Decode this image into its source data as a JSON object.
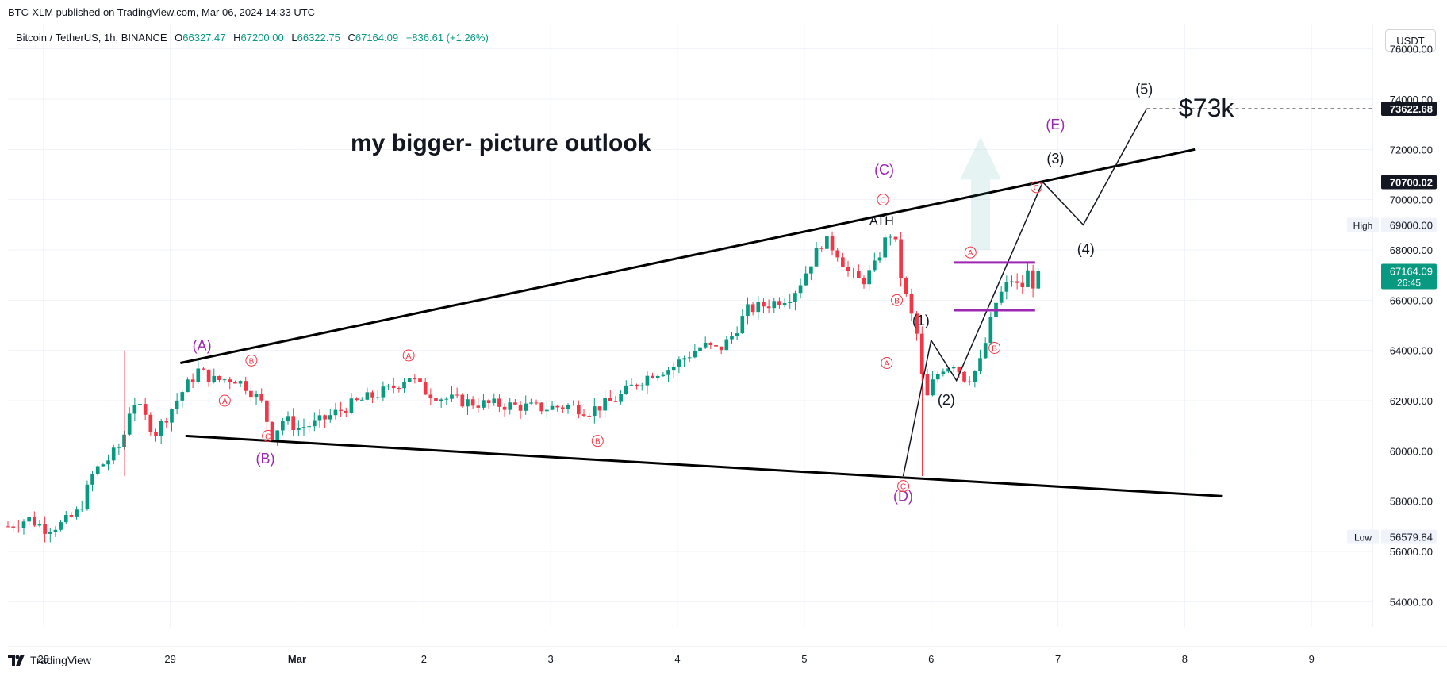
{
  "header": {
    "published": "BTC-XLM published on TradingView.com, Mar 06, 2024 14:33 UTC",
    "symbol": "Bitcoin / TetherUS, 1h, BINANCE",
    "open_label": "O",
    "open": "66327.47",
    "high_label": "H",
    "high": "67200.00",
    "low_label": "L",
    "low": "66322.75",
    "close_label": "C",
    "close": "67164.09",
    "change": "+836.61 (+1.26%)",
    "currency": "USDT"
  },
  "footer": {
    "brand": "TradingView",
    "logo_icon": "tradingview-logo-icon"
  },
  "colors": {
    "up": "#089981",
    "down": "#f23645",
    "wave": "#9c27b0",
    "annotation_red": "#f23645"
  },
  "chart_data": {
    "type": "candlestick",
    "title": "my bigger- picture outlook",
    "ylim": [
      53000,
      77000
    ],
    "price_ticks": [
      "54000.00",
      "56000.00",
      "58000.00",
      "60000.00",
      "62000.00",
      "64000.00",
      "66000.00",
      "68000.00",
      "70000.00",
      "72000.00",
      "74000.00",
      "76000.00"
    ],
    "x_ticks": [
      {
        "label": "28",
        "day": -1
      },
      {
        "label": "29",
        "day": 0
      },
      {
        "label": "Mar",
        "day": 1
      },
      {
        "label": "2",
        "day": 2
      },
      {
        "label": "3",
        "day": 3
      },
      {
        "label": "4",
        "day": 4
      },
      {
        "label": "5",
        "day": 5
      },
      {
        "label": "6",
        "day": 6
      },
      {
        "label": "7",
        "day": 7
      },
      {
        "label": "8",
        "day": 8
      },
      {
        "label": "9",
        "day": 9
      }
    ],
    "x_range_days": [
      -1.28,
      9.48
    ],
    "price_labels": [
      {
        "text": "73622.68",
        "value": 73622.68,
        "style": "dark"
      },
      {
        "text": "70700.02",
        "value": 70700.02,
        "style": "dark"
      },
      {
        "text": "69000.00",
        "value": 69000,
        "style": "light",
        "tag": "High"
      },
      {
        "text": "67164.09",
        "value": 67164.09,
        "style": "green",
        "countdown": "26:45"
      },
      {
        "text": "56579.84",
        "value": 56579.84,
        "style": "light",
        "tag": "Low"
      }
    ],
    "current_price": 67164.09,
    "price_path": [
      [
        -1.28,
        57000
      ],
      [
        -1.12,
        57300
      ],
      [
        -0.98,
        56900
      ],
      [
        -0.85,
        57100
      ],
      [
        -0.72,
        57600
      ],
      [
        -0.6,
        59200
      ],
      [
        -0.48,
        59700
      ],
      [
        -0.38,
        60300
      ],
      [
        -0.3,
        62100
      ],
      [
        -0.22,
        61500
      ],
      [
        -0.12,
        60700
      ],
      [
        0.0,
        61600
      ],
      [
        0.1,
        62400
      ],
      [
        0.22,
        63200
      ],
      [
        0.35,
        62800
      ],
      [
        0.5,
        62900
      ],
      [
        0.62,
        62500
      ],
      [
        0.72,
        61900
      ],
      [
        0.8,
        60600
      ],
      [
        0.9,
        61300
      ],
      [
        1.0,
        60900
      ],
      [
        1.15,
        61100
      ],
      [
        1.3,
        61500
      ],
      [
        1.45,
        61900
      ],
      [
        1.6,
        62200
      ],
      [
        1.75,
        62500
      ],
      [
        1.88,
        63000
      ],
      [
        2.0,
        62400
      ],
      [
        2.15,
        62100
      ],
      [
        2.4,
        61900
      ],
      [
        2.7,
        61800
      ],
      [
        2.95,
        61700
      ],
      [
        3.15,
        61800
      ],
      [
        3.3,
        61600
      ],
      [
        3.5,
        62000
      ],
      [
        3.65,
        62600
      ],
      [
        3.8,
        63100
      ],
      [
        3.95,
        63300
      ],
      [
        4.05,
        63700
      ],
      [
        4.2,
        64200
      ],
      [
        4.32,
        64000
      ],
      [
        4.42,
        64500
      ],
      [
        4.55,
        65600
      ],
      [
        4.75,
        65900
      ],
      [
        4.9,
        66200
      ],
      [
        4.98,
        66800
      ],
      [
        5.05,
        67500
      ],
      [
        5.15,
        68400
      ],
      [
        5.25,
        68000
      ],
      [
        5.35,
        67100
      ],
      [
        5.45,
        66700
      ],
      [
        5.55,
        67300
      ],
      [
        5.63,
        68300
      ],
      [
        5.7,
        68800
      ],
      [
        5.76,
        67000
      ],
      [
        5.82,
        65800
      ],
      [
        5.9,
        64400
      ],
      [
        5.95,
        61800
      ],
      [
        6.0,
        62600
      ],
      [
        6.08,
        63300
      ],
      [
        6.18,
        63500
      ],
      [
        6.28,
        62800
      ],
      [
        6.38,
        63400
      ],
      [
        6.45,
        64700
      ],
      [
        6.5,
        65800
      ],
      [
        6.58,
        66500
      ],
      [
        6.65,
        66900
      ],
      [
        6.7,
        66300
      ],
      [
        6.76,
        67100
      ],
      [
        6.82,
        66500
      ],
      [
        6.86,
        67164
      ]
    ],
    "sample_series": [
      {
        "t": -1.24,
        "o": 56700,
        "c": 57100
      },
      {
        "t": -1.14,
        "o": 57100,
        "c": 57400
      },
      {
        "t": -1.04,
        "o": 57400,
        "c": 57000
      },
      {
        "t": -0.94,
        "o": 57000,
        "c": 56800
      },
      {
        "t": -0.84,
        "o": 56800,
        "c": 57200
      },
      {
        "t": -0.74,
        "o": 57200,
        "c": 57700
      },
      {
        "t": -0.64,
        "o": 57700,
        "c": 59300
      },
      {
        "t": -0.54,
        "o": 59300,
        "c": 59700
      },
      {
        "t": -0.44,
        "o": 59700,
        "c": 60200
      },
      {
        "t": -0.34,
        "o": 60200,
        "c": 62000
      },
      {
        "t": -0.24,
        "o": 62000,
        "c": 61300
      },
      {
        "t": -0.14,
        "o": 61300,
        "c": 60500
      },
      {
        "t": -0.04,
        "o": 60500,
        "c": 61600
      },
      {
        "t": 0.06,
        "o": 61600,
        "c": 62500
      },
      {
        "t": 0.16,
        "o": 62500,
        "c": 63200
      },
      {
        "t": 0.26,
        "o": 63200,
        "c": 62700
      },
      {
        "t": 0.36,
        "o": 62700,
        "c": 62900
      },
      {
        "t": 0.46,
        "o": 62900,
        "c": 62600
      },
      {
        "t": 0.56,
        "o": 62600,
        "c": 62900
      },
      {
        "t": 0.66,
        "o": 62900,
        "c": 62000
      },
      {
        "t": 0.76,
        "o": 62000,
        "c": 60700
      },
      {
        "t": 0.86,
        "o": 60700,
        "c": 61300
      },
      {
        "t": 0.96,
        "o": 61300,
        "c": 60900
      },
      {
        "t": 1.06,
        "o": 60900,
        "c": 61200
      },
      {
        "t": 1.16,
        "o": 61200,
        "c": 61000
      },
      {
        "t": 1.26,
        "o": 61000,
        "c": 61500
      },
      {
        "t": 1.36,
        "o": 61500,
        "c": 61900
      },
      {
        "t": 1.46,
        "o": 61900,
        "c": 62300
      },
      {
        "t": 1.56,
        "o": 62300,
        "c": 62200
      },
      {
        "t": 1.66,
        "o": 62200,
        "c": 62600
      },
      {
        "t": 1.76,
        "o": 62600,
        "c": 62100
      },
      {
        "t": 1.86,
        "o": 62100,
        "c": 63000
      },
      {
        "t": 1.96,
        "o": 63000,
        "c": 62500
      },
      {
        "t": 2.06,
        "o": 62500,
        "c": 62300
      },
      {
        "t": 2.16,
        "o": 62300,
        "c": 62000
      },
      {
        "t": 2.26,
        "o": 62000,
        "c": 62100
      },
      {
        "t": 2.36,
        "o": 62100,
        "c": 61900
      },
      {
        "t": 2.46,
        "o": 61900,
        "c": 62000
      },
      {
        "t": 2.56,
        "o": 62000,
        "c": 61800
      },
      {
        "t": 2.66,
        "o": 61800,
        "c": 61900
      },
      {
        "t": 2.76,
        "o": 61900,
        "c": 61700
      },
      {
        "t": 2.86,
        "o": 61700,
        "c": 62000
      },
      {
        "t": 2.96,
        "o": 62000,
        "c": 61800
      },
      {
        "t": 3.06,
        "o": 61800,
        "c": 61900
      },
      {
        "t": 3.16,
        "o": 61900,
        "c": 61700
      },
      {
        "t": 3.26,
        "o": 61700,
        "c": 61600
      },
      {
        "t": 3.36,
        "o": 61600,
        "c": 61900
      },
      {
        "t": 3.46,
        "o": 61900,
        "c": 62100
      },
      {
        "t": 3.56,
        "o": 62100,
        "c": 62500
      },
      {
        "t": 3.66,
        "o": 62500,
        "c": 62900
      },
      {
        "t": 3.76,
        "o": 62900,
        "c": 63200
      },
      {
        "t": 3.86,
        "o": 63200,
        "c": 63100
      },
      {
        "t": 3.96,
        "o": 63100,
        "c": 63500
      },
      {
        "t": 4.06,
        "o": 63500,
        "c": 64100
      },
      {
        "t": 4.16,
        "o": 64100,
        "c": 63900
      },
      {
        "t": 4.26,
        "o": 63900,
        "c": 64300
      },
      {
        "t": 4.36,
        "o": 64300,
        "c": 63900
      },
      {
        "t": 4.46,
        "o": 63900,
        "c": 65700
      },
      {
        "t": 4.56,
        "o": 65700,
        "c": 65500
      },
      {
        "t": 4.66,
        "o": 65500,
        "c": 65800
      },
      {
        "t": 4.76,
        "o": 65800,
        "c": 66100
      },
      {
        "t": 4.86,
        "o": 66100,
        "c": 66700
      },
      {
        "t": 4.96,
        "o": 66700,
        "c": 67300
      },
      {
        "t": 5.06,
        "o": 67300,
        "c": 68000
      },
      {
        "t": 5.16,
        "o": 68000,
        "c": 68300
      },
      {
        "t": 5.26,
        "o": 68300,
        "c": 67800
      },
      {
        "t": 5.36,
        "o": 67800,
        "c": 66900
      },
      {
        "t": 5.46,
        "o": 66900,
        "c": 66500
      },
      {
        "t": 5.56,
        "o": 66500,
        "c": 67200
      },
      {
        "t": 5.62,
        "o": 67200,
        "c": 68200
      },
      {
        "t": 5.68,
        "o": 68200,
        "c": 68800
      },
      {
        "t": 5.74,
        "o": 68800,
        "c": 66900
      },
      {
        "t": 5.8,
        "o": 66900,
        "c": 65500
      },
      {
        "t": 5.86,
        "o": 65500,
        "c": 63800
      },
      {
        "t": 5.92,
        "o": 63500,
        "c": 61600
      },
      {
        "t": 5.98,
        "o": 61600,
        "c": 62700
      },
      {
        "t": 6.04,
        "o": 62700,
        "c": 63400
      },
      {
        "t": 6.1,
        "o": 63400,
        "c": 63700
      },
      {
        "t": 6.16,
        "o": 63700,
        "c": 63200
      },
      {
        "t": 6.22,
        "o": 63200,
        "c": 62800
      },
      {
        "t": 6.28,
        "o": 62800,
        "c": 63300
      },
      {
        "t": 6.34,
        "o": 63300,
        "c": 64400
      },
      {
        "t": 6.4,
        "o": 64400,
        "c": 65800
      },
      {
        "t": 6.46,
        "o": 65800,
        "c": 66400
      },
      {
        "t": 6.52,
        "o": 66400,
        "c": 66900
      },
      {
        "t": 6.58,
        "o": 66900,
        "c": 66200
      },
      {
        "t": 6.64,
        "o": 66200,
        "c": 67000
      },
      {
        "t": 6.7,
        "o": 67000,
        "c": 66600
      },
      {
        "t": 6.76,
        "o": 66600,
        "c": 66200
      },
      {
        "t": 6.82,
        "o": 66200,
        "c": 67164
      }
    ],
    "trendlines": [
      {
        "name": "upper-channel",
        "from": [
          0.08,
          63500
        ],
        "to": [
          8.08,
          72000
        ]
      },
      {
        "name": "lower-channel",
        "from": [
          0.12,
          60600
        ],
        "to": [
          8.3,
          58200
        ]
      }
    ],
    "projection": [
      [
        5.78,
        59000
      ],
      [
        6.0,
        64400
      ],
      [
        6.2,
        62800
      ],
      [
        6.88,
        70700
      ],
      [
        7.2,
        69000
      ],
      [
        7.7,
        73622.68
      ]
    ],
    "consolidation_box": {
      "top": 67500,
      "bottom": 65600,
      "from": 6.18,
      "to": 6.82
    },
    "wave_labels": [
      {
        "text": "(A)",
        "day": 0.25,
        "price": 64000,
        "color": "wave"
      },
      {
        "text": "(B)",
        "day": 0.75,
        "price": 59500,
        "color": "wave"
      },
      {
        "text": "(C)",
        "day": 5.63,
        "price": 71000,
        "color": "wave"
      },
      {
        "text": "(D)",
        "day": 5.78,
        "price": 58000,
        "color": "wave"
      },
      {
        "text": "(E)",
        "day": 6.98,
        "price": 72800,
        "color": "wave"
      },
      {
        "text": "(1)",
        "day": 5.92,
        "price": 65000,
        "color": "black"
      },
      {
        "text": "(2)",
        "day": 6.12,
        "price": 61850,
        "color": "black"
      },
      {
        "text": "(3)",
        "day": 6.98,
        "price": 71450,
        "color": "black"
      },
      {
        "text": "(4)",
        "day": 7.22,
        "price": 67850,
        "color": "black"
      },
      {
        "text": "(5)",
        "day": 7.68,
        "price": 74200,
        "color": "black"
      },
      {
        "text": "ATH",
        "day": 5.61,
        "price": 69000,
        "color": "black"
      }
    ],
    "circle_labels": [
      {
        "text": "A",
        "day": 0.43,
        "price": 62000
      },
      {
        "text": "B",
        "day": 0.64,
        "price": 63600
      },
      {
        "text": "C",
        "day": 0.77,
        "price": 60600
      },
      {
        "text": "A",
        "day": 1.88,
        "price": 63800
      },
      {
        "text": "B",
        "day": 3.37,
        "price": 60400
      },
      {
        "text": "C",
        "day": 5.62,
        "price": 70000
      },
      {
        "text": "B",
        "day": 5.73,
        "price": 66000
      },
      {
        "text": "A",
        "day": 5.65,
        "price": 63500
      },
      {
        "text": "C",
        "day": 5.78,
        "price": 58600
      },
      {
        "text": "A",
        "day": 6.31,
        "price": 67900
      },
      {
        "text": "B",
        "day": 6.5,
        "price": 64100
      },
      {
        "text": "C",
        "day": 6.83,
        "price": 70500
      }
    ],
    "target_text": "$73k"
  }
}
